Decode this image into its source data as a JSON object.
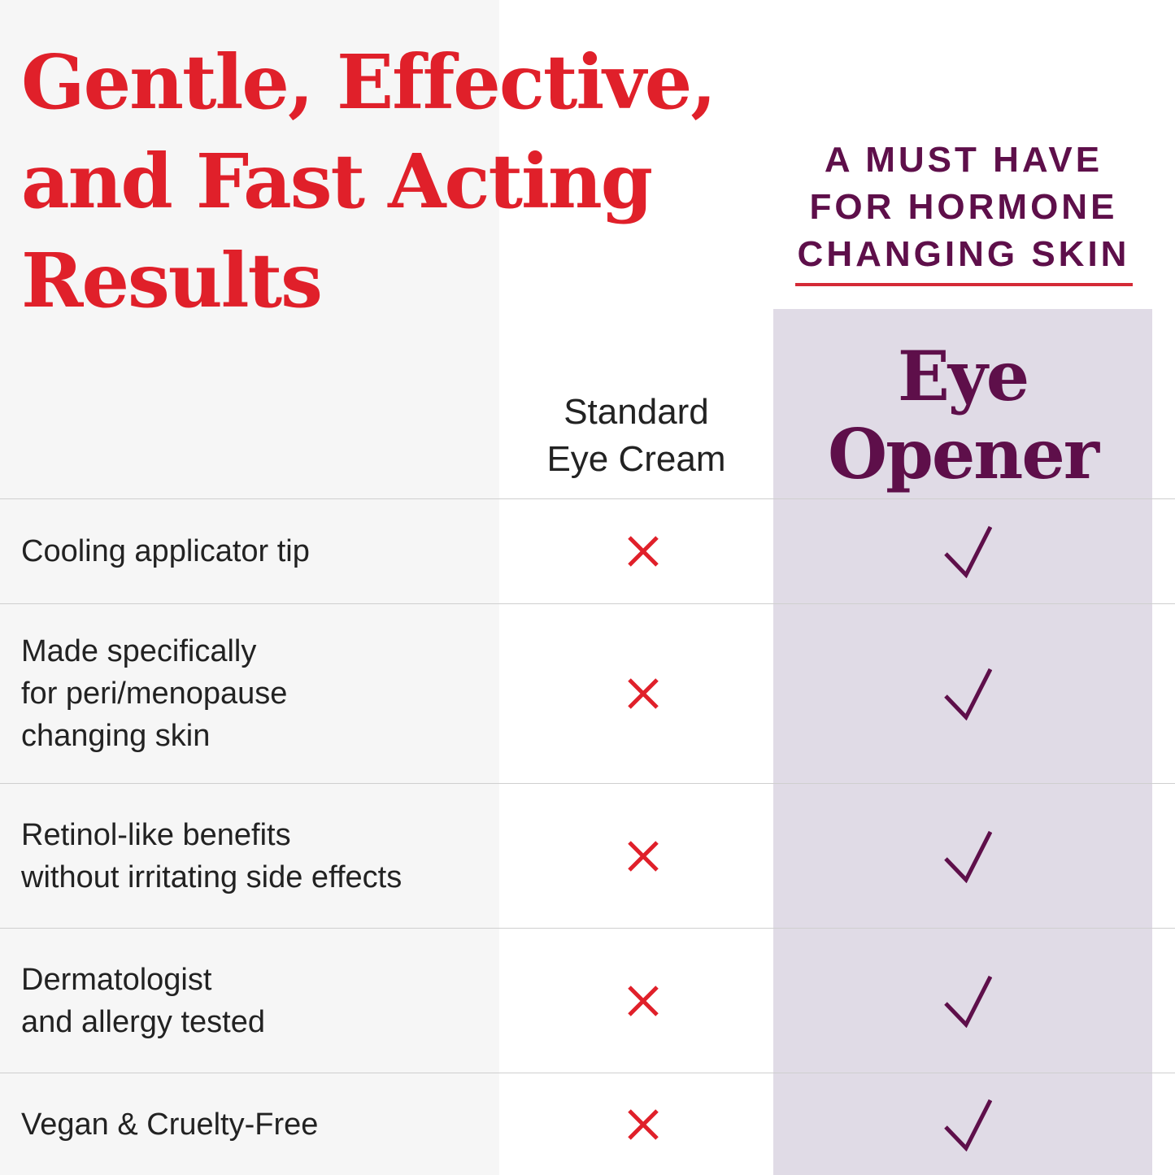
{
  "headline": {
    "lines": [
      "Gentle, Effective,",
      "and Fast Acting",
      "Results"
    ]
  },
  "tagline": {
    "lines": [
      "A MUST HAVE",
      "FOR HORMONE",
      "CHANGING SKIN"
    ]
  },
  "columns": {
    "standard": [
      "Standard",
      "Eye Cream"
    ],
    "product": [
      "Eye",
      "Opener"
    ]
  },
  "colors": {
    "red": "#e0202a",
    "purple": "#5e0f4a",
    "purple_column": "#e0dbe6"
  },
  "rows": [
    {
      "feature": [
        "Cooling applicator tip"
      ],
      "standard": "x-icon",
      "product": "check-icon"
    },
    {
      "feature": [
        "Made specifically",
        "for peri/menopause",
        "changing skin"
      ],
      "standard": "x-icon",
      "product": "check-icon"
    },
    {
      "feature": [
        "Retinol-like benefits",
        "without irritating side effects"
      ],
      "standard": "x-icon",
      "product": "check-icon"
    },
    {
      "feature": [
        "Dermatologist",
        "and allergy tested"
      ],
      "standard": "x-icon",
      "product": "check-icon"
    },
    {
      "feature": [
        "Vegan & Cruelty-Free"
      ],
      "standard": "x-icon",
      "product": "check-icon"
    }
  ]
}
